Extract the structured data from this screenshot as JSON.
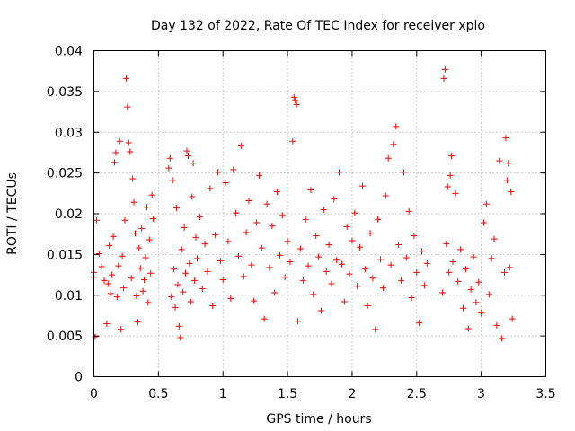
{
  "chart_data": {
    "type": "scatter",
    "title": "Day 132 of 2022, Rate Of TEC Index for receiver xplo",
    "xlabel": "GPS time / hours",
    "ylabel": "ROTI / TECUs",
    "xlim": [
      0,
      3.5
    ],
    "ylim": [
      0,
      0.04
    ],
    "xticks": [
      0,
      0.5,
      1,
      1.5,
      2,
      2.5,
      3,
      3.5
    ],
    "xtick_labels": [
      "0",
      "0.5",
      "1",
      "1.5",
      "2",
      "2.5",
      "3",
      "3.5"
    ],
    "yticks": [
      0,
      0.005,
      0.01,
      0.015,
      0.02,
      0.025,
      0.03,
      0.035,
      0.04
    ],
    "ytick_labels": [
      "0",
      "0.005",
      "0.01",
      "0.015",
      "0.02",
      "0.025",
      "0.03",
      "0.035",
      "0.04"
    ],
    "grid": true,
    "marker": "+",
    "color": "#ff0000",
    "series": [
      {
        "name": "xplo",
        "points": [
          [
            0.0,
            0.0122
          ],
          [
            0.0,
            0.0128
          ],
          [
            0.01,
            0.0049
          ],
          [
            0.02,
            0.0192
          ],
          [
            0.04,
            0.0151
          ],
          [
            0.06,
            0.0135
          ],
          [
            0.08,
            0.0118
          ],
          [
            0.1,
            0.0065
          ],
          [
            0.11,
            0.0114
          ],
          [
            0.12,
            0.0161
          ],
          [
            0.13,
            0.0102
          ],
          [
            0.14,
            0.0125
          ],
          [
            0.15,
            0.0172
          ],
          [
            0.16,
            0.0263
          ],
          [
            0.17,
            0.0275
          ],
          [
            0.18,
            0.0098
          ],
          [
            0.19,
            0.0136
          ],
          [
            0.2,
            0.0289
          ],
          [
            0.21,
            0.0058
          ],
          [
            0.22,
            0.0148
          ],
          [
            0.23,
            0.0109
          ],
          [
            0.24,
            0.0192
          ],
          [
            0.25,
            0.0366
          ],
          [
            0.26,
            0.0331
          ],
          [
            0.27,
            0.0287
          ],
          [
            0.28,
            0.0276
          ],
          [
            0.29,
            0.0121
          ],
          [
            0.3,
            0.0243
          ],
          [
            0.31,
            0.0214
          ],
          [
            0.32,
            0.0176
          ],
          [
            0.33,
            0.0099
          ],
          [
            0.34,
            0.0067
          ],
          [
            0.35,
            0.0158
          ],
          [
            0.36,
            0.0133
          ],
          [
            0.37,
            0.0182
          ],
          [
            0.38,
            0.0105
          ],
          [
            0.39,
            0.0119
          ],
          [
            0.4,
            0.0146
          ],
          [
            0.41,
            0.0208
          ],
          [
            0.42,
            0.0091
          ],
          [
            0.43,
            0.0168
          ],
          [
            0.44,
            0.0127
          ],
          [
            0.45,
            0.0223
          ],
          [
            0.46,
            0.0194
          ],
          [
            0.58,
            0.0256
          ],
          [
            0.59,
            0.0268
          ],
          [
            0.6,
            0.0098
          ],
          [
            0.61,
            0.0241
          ],
          [
            0.62,
            0.0132
          ],
          [
            0.63,
            0.0085
          ],
          [
            0.64,
            0.0207
          ],
          [
            0.65,
            0.0113
          ],
          [
            0.66,
            0.0062
          ],
          [
            0.67,
            0.0048
          ],
          [
            0.68,
            0.0156
          ],
          [
            0.69,
            0.0104
          ],
          [
            0.7,
            0.0183
          ],
          [
            0.71,
            0.0127
          ],
          [
            0.72,
            0.0277
          ],
          [
            0.73,
            0.0271
          ],
          [
            0.74,
            0.0139
          ],
          [
            0.75,
            0.0092
          ],
          [
            0.76,
            0.0221
          ],
          [
            0.77,
            0.0262
          ],
          [
            0.78,
            0.0118
          ],
          [
            0.79,
            0.0171
          ],
          [
            0.8,
            0.0145
          ],
          [
            0.82,
            0.0196
          ],
          [
            0.84,
            0.0108
          ],
          [
            0.86,
            0.0163
          ],
          [
            0.88,
            0.0129
          ],
          [
            0.9,
            0.0231
          ],
          [
            0.92,
            0.0087
          ],
          [
            0.94,
            0.0174
          ],
          [
            0.96,
            0.0251
          ],
          [
            0.98,
            0.0142
          ],
          [
            1.0,
            0.0119
          ],
          [
            1.02,
            0.0238
          ],
          [
            1.04,
            0.0166
          ],
          [
            1.06,
            0.0096
          ],
          [
            1.08,
            0.0254
          ],
          [
            1.1,
            0.0201
          ],
          [
            1.12,
            0.0148
          ],
          [
            1.14,
            0.0283
          ],
          [
            1.16,
            0.0123
          ],
          [
            1.18,
            0.0177
          ],
          [
            1.2,
            0.0216
          ],
          [
            1.22,
            0.0137
          ],
          [
            1.24,
            0.0093
          ],
          [
            1.26,
            0.0189
          ],
          [
            1.28,
            0.0247
          ],
          [
            1.3,
            0.0158
          ],
          [
            1.32,
            0.0071
          ],
          [
            1.34,
            0.0212
          ],
          [
            1.36,
            0.0134
          ],
          [
            1.38,
            0.0185
          ],
          [
            1.4,
            0.0103
          ],
          [
            1.42,
            0.0227
          ],
          [
            1.44,
            0.0149
          ],
          [
            1.46,
            0.0198
          ],
          [
            1.48,
            0.0122
          ],
          [
            1.5,
            0.0166
          ],
          [
            1.52,
            0.0141
          ],
          [
            1.54,
            0.0289
          ],
          [
            1.55,
            0.0343
          ],
          [
            1.56,
            0.0339
          ],
          [
            1.57,
            0.0334
          ],
          [
            1.58,
            0.0068
          ],
          [
            1.6,
            0.0157
          ],
          [
            1.62,
            0.0118
          ],
          [
            1.64,
            0.0193
          ],
          [
            1.66,
            0.0136
          ],
          [
            1.68,
            0.0229
          ],
          [
            1.7,
            0.0101
          ],
          [
            1.72,
            0.0173
          ],
          [
            1.74,
            0.0147
          ],
          [
            1.76,
            0.0081
          ],
          [
            1.78,
            0.0205
          ],
          [
            1.8,
            0.0129
          ],
          [
            1.82,
            0.0162
          ],
          [
            1.84,
            0.0114
          ],
          [
            1.86,
            0.0218
          ],
          [
            1.88,
            0.0143
          ],
          [
            1.9,
            0.0251
          ],
          [
            1.92,
            0.0138
          ],
          [
            1.94,
            0.0092
          ],
          [
            1.96,
            0.0184
          ],
          [
            1.98,
            0.0126
          ],
          [
            2.0,
            0.0167
          ],
          [
            2.02,
            0.0201
          ],
          [
            2.04,
            0.0111
          ],
          [
            2.06,
            0.0159
          ],
          [
            2.08,
            0.0234
          ],
          [
            2.1,
            0.0132
          ],
          [
            2.12,
            0.0087
          ],
          [
            2.14,
            0.0176
          ],
          [
            2.16,
            0.0121
          ],
          [
            2.18,
            0.0058
          ],
          [
            2.2,
            0.0193
          ],
          [
            2.22,
            0.0144
          ],
          [
            2.24,
            0.0109
          ],
          [
            2.26,
            0.0222
          ],
          [
            2.28,
            0.0268
          ],
          [
            2.3,
            0.0137
          ],
          [
            2.32,
            0.0285
          ],
          [
            2.34,
            0.0307
          ],
          [
            2.36,
            0.0162
          ],
          [
            2.38,
            0.0118
          ],
          [
            2.4,
            0.0251
          ],
          [
            2.42,
            0.0146
          ],
          [
            2.44,
            0.0203
          ],
          [
            2.46,
            0.0097
          ],
          [
            2.48,
            0.0173
          ],
          [
            2.5,
            0.0128
          ],
          [
            2.52,
            0.0066
          ],
          [
            2.54,
            0.0154
          ],
          [
            2.56,
            0.0112
          ],
          [
            2.58,
            0.0139
          ],
          [
            2.7,
            0.0103
          ],
          [
            2.71,
            0.0366
          ],
          [
            2.72,
            0.0377
          ],
          [
            2.73,
            0.0163
          ],
          [
            2.74,
            0.0233
          ],
          [
            2.75,
            0.0128
          ],
          [
            2.76,
            0.0247
          ],
          [
            2.77,
            0.0271
          ],
          [
            2.78,
            0.0141
          ],
          [
            2.8,
            0.0225
          ],
          [
            2.82,
            0.0117
          ],
          [
            2.84,
            0.0156
          ],
          [
            2.86,
            0.0084
          ],
          [
            2.88,
            0.0132
          ],
          [
            2.9,
            0.0059
          ],
          [
            2.92,
            0.0107
          ],
          [
            2.94,
            0.0147
          ],
          [
            2.96,
            0.0091
          ],
          [
            2.98,
            0.0116
          ],
          [
            3.0,
            0.0078
          ],
          [
            3.02,
            0.0189
          ],
          [
            3.04,
            0.0212
          ],
          [
            3.06,
            0.0101
          ],
          [
            3.08,
            0.0145
          ],
          [
            3.1,
            0.0169
          ],
          [
            3.12,
            0.0063
          ],
          [
            3.14,
            0.0265
          ],
          [
            3.16,
            0.0047
          ],
          [
            3.18,
            0.0128
          ],
          [
            3.19,
            0.0293
          ],
          [
            3.2,
            0.0241
          ],
          [
            3.21,
            0.0262
          ],
          [
            3.22,
            0.0134
          ],
          [
            3.23,
            0.0227
          ],
          [
            3.24,
            0.0071
          ]
        ]
      }
    ]
  }
}
